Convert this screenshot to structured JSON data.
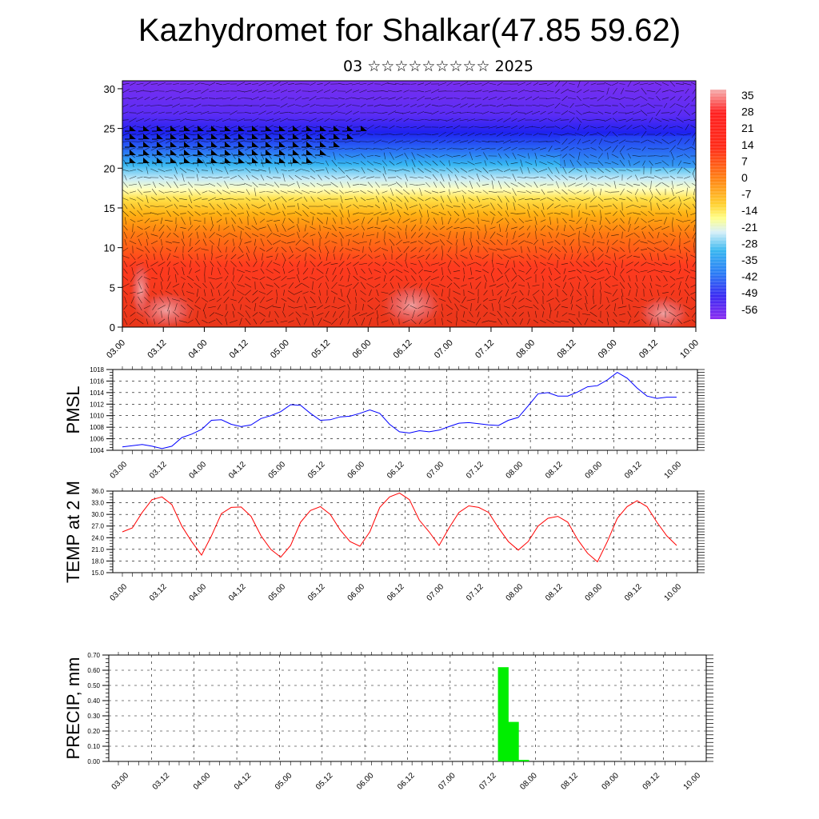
{
  "header": {
    "title": "Kazhydromet for Shalkar(47.85 59.62)",
    "subtitle": "03 ☆☆☆☆☆☆☆☆☆ 2025"
  },
  "chart_data": [
    {
      "type": "heatmap",
      "name": "cross-section",
      "x_ticks": [
        "03.00",
        "03.12",
        "04.00",
        "04.12",
        "05.00",
        "05.12",
        "06.00",
        "06.12",
        "07.00",
        "07.12",
        "08.00",
        "08.12",
        "09.00",
        "09.12",
        "10.00"
      ],
      "y_ticks": [
        0,
        5,
        10,
        15,
        20,
        25,
        30
      ],
      "ylim": [
        0,
        31
      ],
      "colorbar": {
        "labels": [
          35,
          28,
          21,
          14,
          7,
          0,
          -7,
          -14,
          -21,
          -28,
          -35,
          -42,
          -49,
          -56
        ],
        "colors": [
          "#ff3030",
          "#ffd700",
          "#ffffcc",
          "#29b6f6",
          "#2222ff",
          "#7b2ff7"
        ]
      },
      "overlay": "wind vectors and barbs"
    },
    {
      "type": "line",
      "ylabel": "PMSL",
      "x_ticks": [
        "03.00",
        "03.12",
        "04.00",
        "04.12",
        "05.00",
        "05.12",
        "06.00",
        "06.12",
        "07.00",
        "07.12",
        "08.00",
        "08.12",
        "09.00",
        "09.12",
        "10.00"
      ],
      "y_ticks": [
        "1004",
        "1006",
        "1008",
        "1010",
        "1012",
        "1014",
        "1016",
        "1018"
      ],
      "ylim": [
        1004,
        1018
      ],
      "color": "#0000ff",
      "x": [
        0,
        1,
        2,
        3,
        4,
        5,
        6,
        7,
        8,
        9,
        10,
        11,
        12,
        13,
        14,
        15,
        16,
        17,
        18,
        19,
        20,
        21,
        22,
        23,
        24,
        25,
        26,
        27,
        28,
        29,
        30,
        31,
        32,
        33,
        34,
        35,
        36,
        37,
        38,
        39,
        40,
        41,
        42,
        43,
        44,
        45,
        46,
        47,
        48,
        49,
        50,
        51,
        52,
        53,
        54,
        55,
        56
      ],
      "values": [
        1004.6,
        1004.8,
        1005.0,
        1004.7,
        1004.3,
        1004.7,
        1006.2,
        1006.8,
        1007.6,
        1009.2,
        1009.3,
        1008.5,
        1008.1,
        1008.4,
        1009.5,
        1010.0,
        1010.7,
        1011.9,
        1011.8,
        1010.4,
        1009.2,
        1009.3,
        1009.8,
        1009.9,
        1010.4,
        1011.0,
        1010.4,
        1008.5,
        1007.2,
        1007.0,
        1007.4,
        1007.2,
        1007.5,
        1008.1,
        1008.7,
        1008.8,
        1008.6,
        1008.4,
        1008.3,
        1009.2,
        1009.7,
        1011.7,
        1013.8,
        1014.0,
        1013.4,
        1013.4,
        1014.1,
        1015.0,
        1015.2,
        1016.2,
        1017.5,
        1016.5,
        1014.8,
        1013.4,
        1013.0,
        1013.2,
        1013.2
      ]
    },
    {
      "type": "line",
      "ylabel": "TEMP at 2 M",
      "x_ticks": [
        "03.00",
        "03.12",
        "04.00",
        "04.12",
        "05.00",
        "05.12",
        "06.00",
        "06.12",
        "07.00",
        "07.12",
        "08.00",
        "08.12",
        "09.00",
        "09.12",
        "10.00"
      ],
      "y_ticks": [
        "15.0",
        "18.0",
        "21.0",
        "24.0",
        "27.0",
        "30.0",
        "33.0",
        "36.0"
      ],
      "ylim": [
        15,
        36
      ],
      "color": "#ff0000",
      "x": [
        0,
        1,
        2,
        3,
        4,
        5,
        6,
        7,
        8,
        9,
        10,
        11,
        12,
        13,
        14,
        15,
        16,
        17,
        18,
        19,
        20,
        21,
        22,
        23,
        24,
        25,
        26,
        27,
        28,
        29,
        30,
        31,
        32,
        33,
        34,
        35,
        36,
        37,
        38,
        39,
        40,
        41,
        42,
        43,
        44,
        45,
        46,
        47,
        48,
        49,
        50,
        51,
        52,
        53,
        54,
        55,
        56
      ],
      "values": [
        25.5,
        26.5,
        30.5,
        33.8,
        34.5,
        32.5,
        27.0,
        23.0,
        19.5,
        24.5,
        30.2,
        31.8,
        31.9,
        29.5,
        24.5,
        21.0,
        19.0,
        22.0,
        28.0,
        31.0,
        32.0,
        30.0,
        26.0,
        23.0,
        21.8,
        25.5,
        31.8,
        34.5,
        35.5,
        33.8,
        28.5,
        25.5,
        22.0,
        26.5,
        30.5,
        32.2,
        31.8,
        30.5,
        26.5,
        23.0,
        20.8,
        23.0,
        27.0,
        29.0,
        29.5,
        28.0,
        23.5,
        20.0,
        17.8,
        23.0,
        29.0,
        32.0,
        33.5,
        32.0,
        28.0,
        24.5,
        22.0
      ]
    },
    {
      "type": "bar",
      "ylabel": "PRECIP, mm",
      "x_ticks": [
        "03.00",
        "03.12",
        "04.00",
        "04.12",
        "05.00",
        "05.12",
        "06.00",
        "06.12",
        "07.00",
        "07.12",
        "08.00",
        "08.12",
        "09.00",
        "09.12",
        "10.00"
      ],
      "y_ticks": [
        "0.00",
        "0.10",
        "0.20",
        "0.30",
        "0.40",
        "0.50",
        "0.60",
        "0.70"
      ],
      "ylim": [
        0,
        0.7
      ],
      "color": "#00ee00",
      "bars": [
        {
          "x": 36,
          "value": 0.62
        },
        {
          "x": 37,
          "value": 0.26
        },
        {
          "x": 38,
          "value": 0.01
        }
      ]
    }
  ]
}
